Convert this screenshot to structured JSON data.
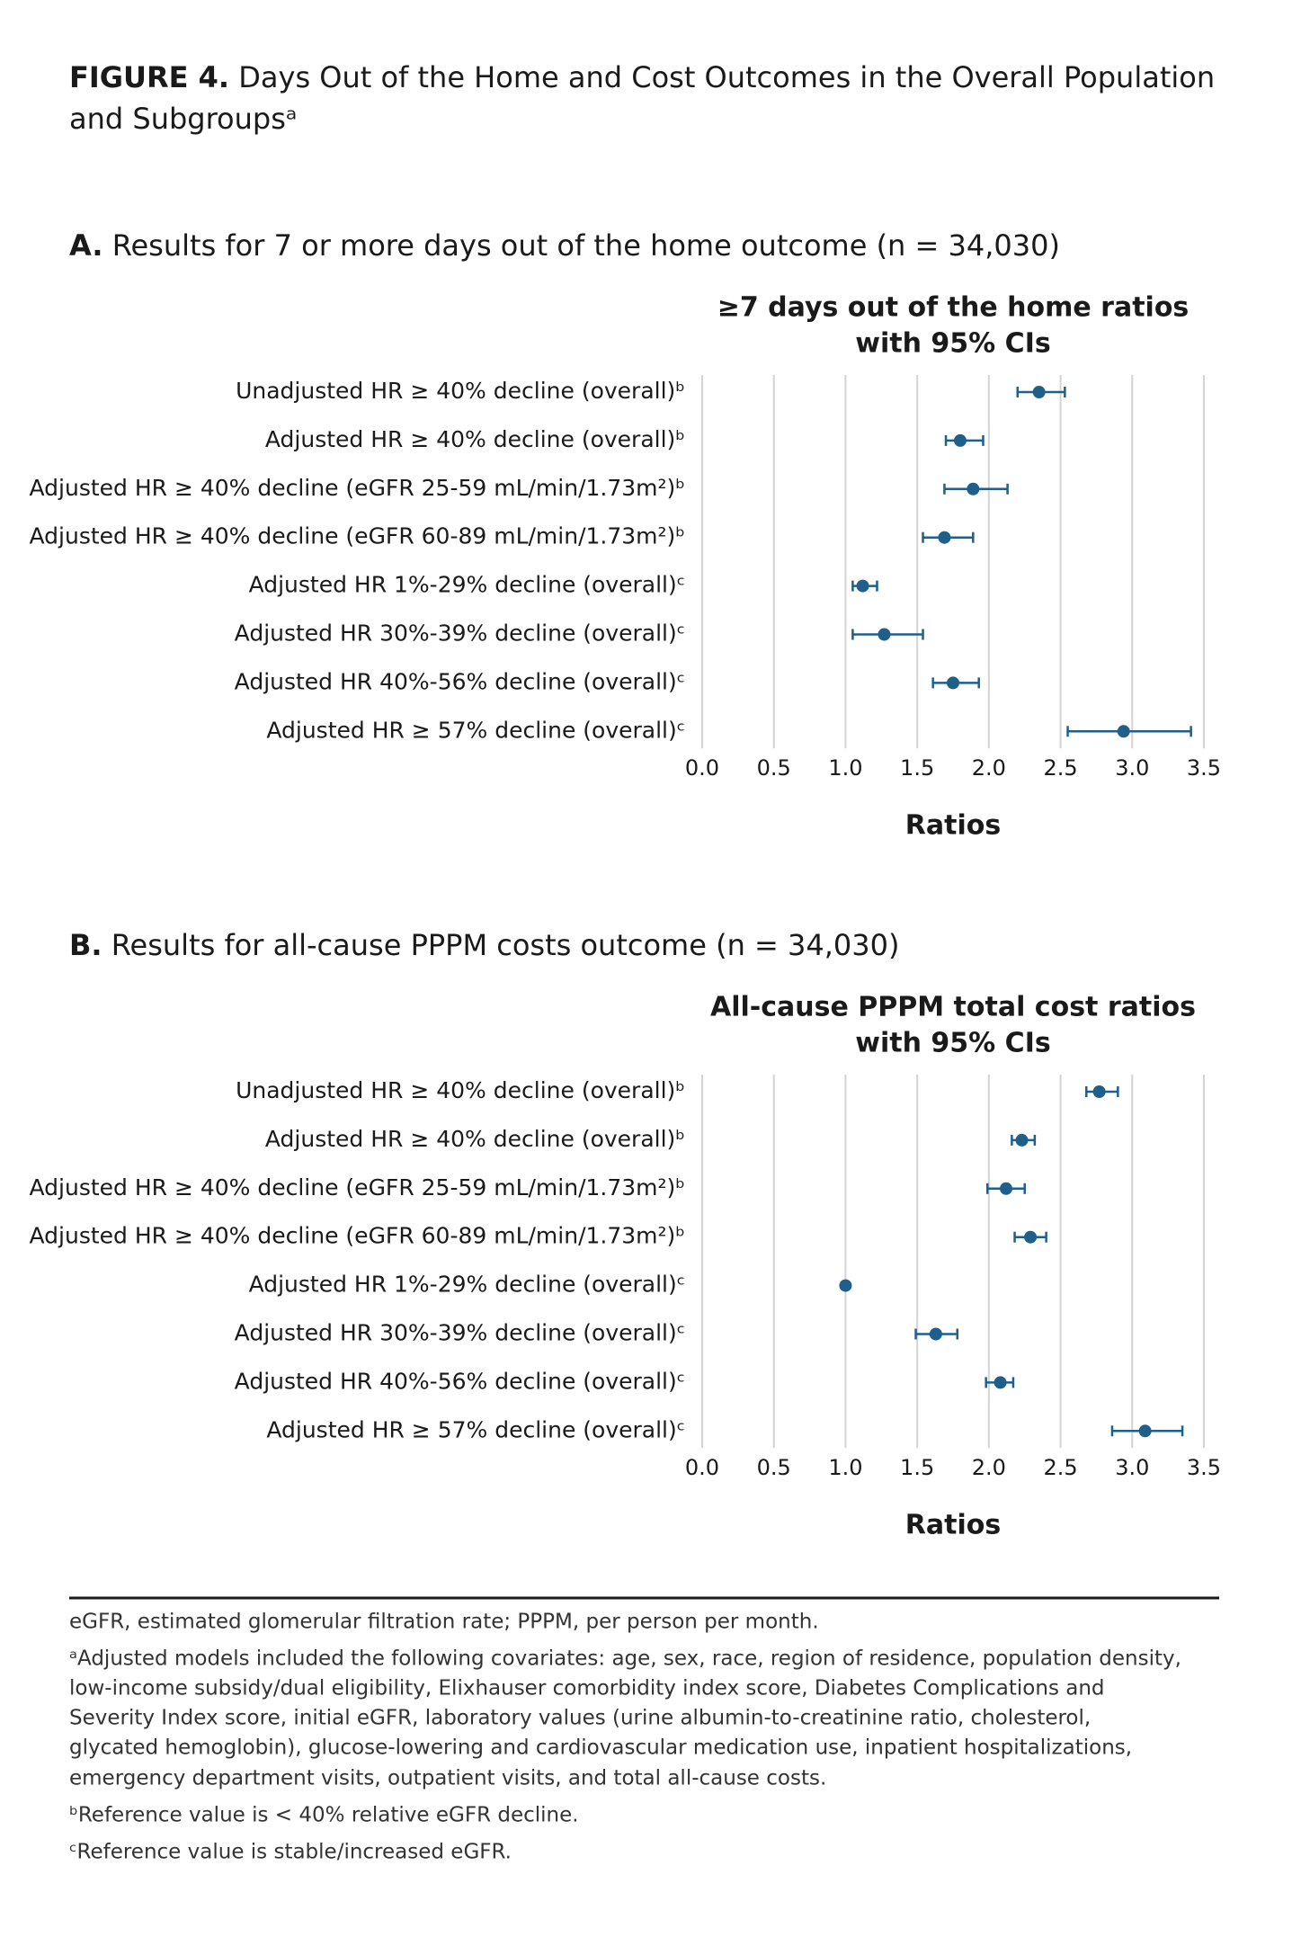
{
  "header": {
    "label": "FIGURE 4.",
    "title_lines": [
      "Days Out of the Home and Cost Outcomes in the Overall Population",
      "and Subgroupsᵃ"
    ]
  },
  "chart_data": [
    {
      "type": "forest",
      "panel_label": "A.",
      "panel_title": "Results for 7 or more days out of the home outcome (n = 34,030)",
      "title": [
        "≥7 days out of the home ratios",
        "with 95% CIs"
      ],
      "xlabel": "Ratios",
      "categories": [
        "Unadjusted HR ≥ 40% decline (overall)ᵇ",
        "Adjusted HR ≥ 40% decline (overall)ᵇ",
        "Adjusted HR ≥ 40% decline (eGFR 25-59 mL/min/1.73m²)ᵇ",
        "Adjusted HR ≥ 40% decline (eGFR 60-89 mL/min/1.73m²)ᵇ",
        "Adjusted HR 1%-29% decline (overall)ᶜ",
        "Adjusted HR 30%-39% decline (overall)ᶜ",
        "Adjusted HR 40%-56% decline (overall)ᶜ",
        "Adjusted HR ≥ 57% decline (overall)ᶜ"
      ],
      "values": [
        2.35,
        1.8,
        1.89,
        1.69,
        1.12,
        1.27,
        1.75,
        2.94
      ],
      "ci_lower": [
        2.2,
        1.7,
        1.69,
        1.54,
        1.05,
        1.05,
        1.61,
        2.55
      ],
      "ci_upper": [
        2.53,
        1.96,
        2.13,
        1.89,
        1.22,
        1.54,
        1.93,
        3.41
      ],
      "color": "#1f5f8b",
      "xlim": [
        0,
        3.5
      ],
      "xticks": [
        {
          "value": 0,
          "label": "0.0"
        },
        0.5,
        {
          "value": 1,
          "label": "1.0"
        },
        1.5,
        {
          "value": 2,
          "label": "2.0"
        },
        2.5,
        {
          "value": 3,
          "label": "3.0"
        },
        3.5
      ],
      "grid": true
    },
    {
      "type": "forest",
      "panel_label": "B.",
      "panel_title": "Results for all-cause PPPM costs outcome (n = 34,030)",
      "title": [
        "All-cause PPPM total cost ratios",
        "with 95% CIs"
      ],
      "xlabel": "Ratios",
      "categories": [
        "Unadjusted HR ≥ 40% decline (overall)ᵇ",
        "Adjusted HR ≥ 40% decline (overall)ᵇ",
        "Adjusted HR ≥ 40% decline (eGFR 25-59 mL/min/1.73m²)ᵇ",
        "Adjusted HR ≥ 40% decline (eGFR 60-89 mL/min/1.73m²)ᵇ",
        "Adjusted HR 1%-29% decline (overall)ᶜ",
        "Adjusted HR 30%-39% decline (overall)ᶜ",
        "Adjusted HR 40%-56% decline (overall)ᶜ",
        "Adjusted HR ≥ 57% decline (overall)ᶜ"
      ],
      "values": [
        2.77,
        2.23,
        2.12,
        2.29,
        1.0,
        1.63,
        2.08,
        3.09
      ],
      "ci_lower": [
        2.68,
        2.16,
        1.99,
        2.18,
        1.0,
        1.49,
        1.98,
        2.86
      ],
      "ci_upper": [
        2.9,
        2.32,
        2.25,
        2.4,
        1.0,
        1.78,
        2.17,
        3.35
      ],
      "color": "#1f5f8b",
      "xlim": [
        0,
        3.5
      ],
      "xticks": [
        {
          "value": 0,
          "label": "0.0"
        },
        0.5,
        {
          "value": 1,
          "label": "1.0"
        },
        1.5,
        {
          "value": 2,
          "label": "2.0"
        },
        2.5,
        {
          "value": 3,
          "label": "3.0"
        },
        3.5
      ],
      "grid": true
    }
  ],
  "footnotes": {
    "abbreviations": "eGFR, estimated glomerular filtration rate; PPPM, per person per month.",
    "a": [
      "ᵃAdjusted models included the following covariates: age, sex, race, region of residence, population density,",
      "low-income subsidy/dual eligibility, Elixhauser comorbidity index score, Diabetes Complications and",
      "Severity Index score, initial eGFR, laboratory values (urine albumin-to-creatinine ratio, cholesterol,",
      "glycated hemoglobin), glucose-lowering and cardiovascular medication use, inpatient hospitalizations,",
      "emergency department visits, outpatient visits, and total all-cause costs."
    ],
    "b": "ᵇReference value is < 40% relative eGFR decline.",
    "c": "ᶜReference value is stable/increased eGFR."
  }
}
